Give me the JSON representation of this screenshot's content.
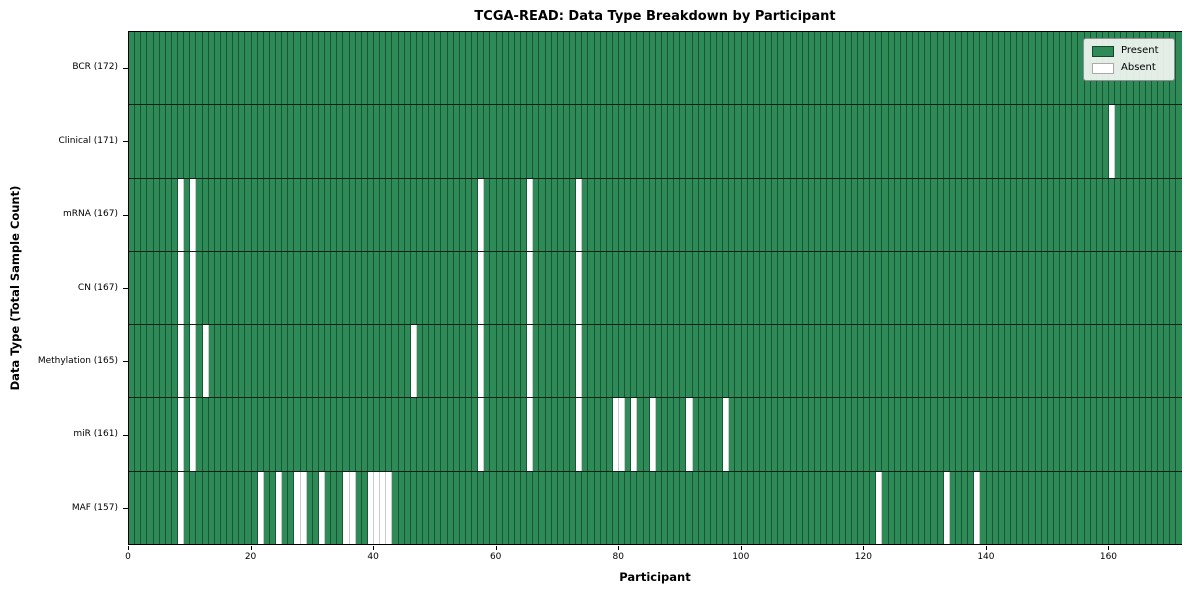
{
  "title": "TCGA-READ: Data Type Breakdown by Participant",
  "chart_data": {
    "type": "heatmap",
    "title": "TCGA-READ: Data Type Breakdown by Participant",
    "xlabel": "Participant",
    "ylabel": "Data Type (Total Sample Count)",
    "x_ticks": [
      0,
      20,
      40,
      60,
      80,
      100,
      120,
      140,
      160
    ],
    "x_range": [
      0,
      172
    ],
    "n_participants": 172,
    "grid": "cell-edges",
    "colors": {
      "present": "#2e8b57",
      "absent": "#ffffff"
    },
    "legend": {
      "position": "upper right",
      "entries": [
        {
          "label": "Present",
          "color": "#2e8b57"
        },
        {
          "label": "Absent",
          "color": "#ffffff"
        }
      ]
    },
    "rows": [
      {
        "name": "BCR",
        "label": "BCR (172)",
        "count": 172,
        "absent": []
      },
      {
        "name": "Clinical",
        "label": "Clinical (171)",
        "count": 171,
        "absent": [
          160
        ]
      },
      {
        "name": "mRNA",
        "label": "mRNA (167)",
        "count": 167,
        "absent": [
          8,
          10,
          57,
          65,
          73
        ]
      },
      {
        "name": "CN",
        "label": "CN (167)",
        "count": 167,
        "absent": [
          8,
          10,
          57,
          65,
          73
        ]
      },
      {
        "name": "Methylation",
        "label": "Methylation (165)",
        "count": 165,
        "absent": [
          8,
          10,
          12,
          46,
          57,
          65,
          73
        ]
      },
      {
        "name": "miR",
        "label": "miR (161)",
        "count": 161,
        "absent": [
          8,
          10,
          57,
          65,
          73,
          79,
          80,
          82,
          85,
          91,
          97
        ]
      },
      {
        "name": "MAF",
        "label": "MAF (157)",
        "count": 157,
        "absent": [
          8,
          21,
          24,
          27,
          28,
          31,
          35,
          36,
          39,
          40,
          41,
          42,
          122,
          133,
          138
        ]
      }
    ]
  }
}
